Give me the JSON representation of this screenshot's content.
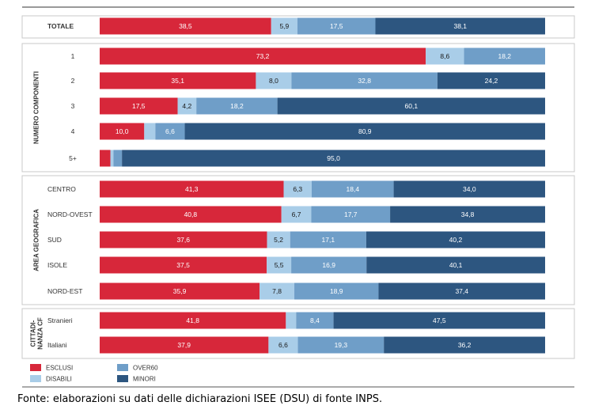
{
  "chart_data": {
    "type": "bar",
    "orientation": "horizontal",
    "stacked": "100%",
    "series": [
      {
        "name": "ESCLUSI",
        "color": "#d7273a"
      },
      {
        "name": "DISABILI",
        "color": "#a9cde8"
      },
      {
        "name": "OVER60",
        "color": "#6f9ec8"
      },
      {
        "name": "MINORI",
        "color": "#2d5680"
      }
    ],
    "groups": [
      {
        "label": "",
        "rows": [
          {
            "label": "TOTALE",
            "values": [
              38.5,
              5.9,
              17.5,
              38.1
            ],
            "labels": [
              "38,5",
              "5,9",
              "17,5",
              "38,1"
            ]
          }
        ]
      },
      {
        "label": "NUMERO COMPONENTI",
        "rows": [
          {
            "label": "1",
            "values": [
              73.2,
              8.6,
              18.2,
              0
            ],
            "labels": [
              "73,2",
              "8,6",
              "18,2",
              ""
            ]
          },
          {
            "label": "2",
            "values": [
              35.1,
              8.0,
              32.8,
              24.2
            ],
            "labels": [
              "35,1",
              "8,0",
              "32,8",
              "24,2"
            ]
          },
          {
            "label": "3",
            "values": [
              17.5,
              4.2,
              18.2,
              60.1
            ],
            "labels": [
              "17,5",
              "4,2",
              "18,2",
              "60,1"
            ]
          },
          {
            "label": "4",
            "values": [
              10.0,
              2.5,
              6.6,
              80.9
            ],
            "labels": [
              "10,0",
              "",
              "6,6",
              "80,9"
            ]
          },
          {
            "label": "5+",
            "values": [
              2.4,
              0.7,
              1.9,
              95.0
            ],
            "labels": [
              "",
              "",
              "",
              "95,0"
            ]
          }
        ]
      },
      {
        "label": "AREA GEOGRAFICA",
        "rows": [
          {
            "label": "CENTRO",
            "values": [
              41.3,
              6.3,
              18.4,
              34.0
            ],
            "labels": [
              "41,3",
              "6,3",
              "18,4",
              "34,0"
            ]
          },
          {
            "label": "NORD-OVEST",
            "values": [
              40.8,
              6.7,
              17.7,
              34.8
            ],
            "labels": [
              "40,8",
              "6,7",
              "17,7",
              "34,8"
            ]
          },
          {
            "label": "SUD",
            "values": [
              37.6,
              5.2,
              17.1,
              40.2
            ],
            "labels": [
              "37,6",
              "5,2",
              "17,1",
              "40,2"
            ]
          },
          {
            "label": "ISOLE",
            "values": [
              37.5,
              5.5,
              16.9,
              40.1
            ],
            "labels": [
              "37,5",
              "5,5",
              "16,9",
              "40,1"
            ]
          },
          {
            "label": "NORD-EST",
            "values": [
              35.9,
              7.8,
              18.9,
              37.4
            ],
            "labels": [
              "35,9",
              "7,8",
              "18,9",
              "37,4"
            ]
          }
        ]
      },
      {
        "label": "CITTADI-\nNANZA CF",
        "rows": [
          {
            "label": "Stranieri",
            "values": [
              41.8,
              2.3,
              8.4,
              47.5
            ],
            "labels": [
              "41,8",
              "",
              "8,4",
              "47,5"
            ]
          },
          {
            "label": "Italiani",
            "values": [
              37.9,
              6.6,
              19.3,
              36.2
            ],
            "labels": [
              "37,9",
              "6,6",
              "19,3",
              "36,2"
            ]
          }
        ]
      }
    ],
    "xlim": [
      0,
      100
    ],
    "grid": false,
    "legend_position": "bottom-left"
  },
  "source": "Fonte: elaborazioni su dati delle dichiarazioni ISEE (DSU) di fonte INPS."
}
